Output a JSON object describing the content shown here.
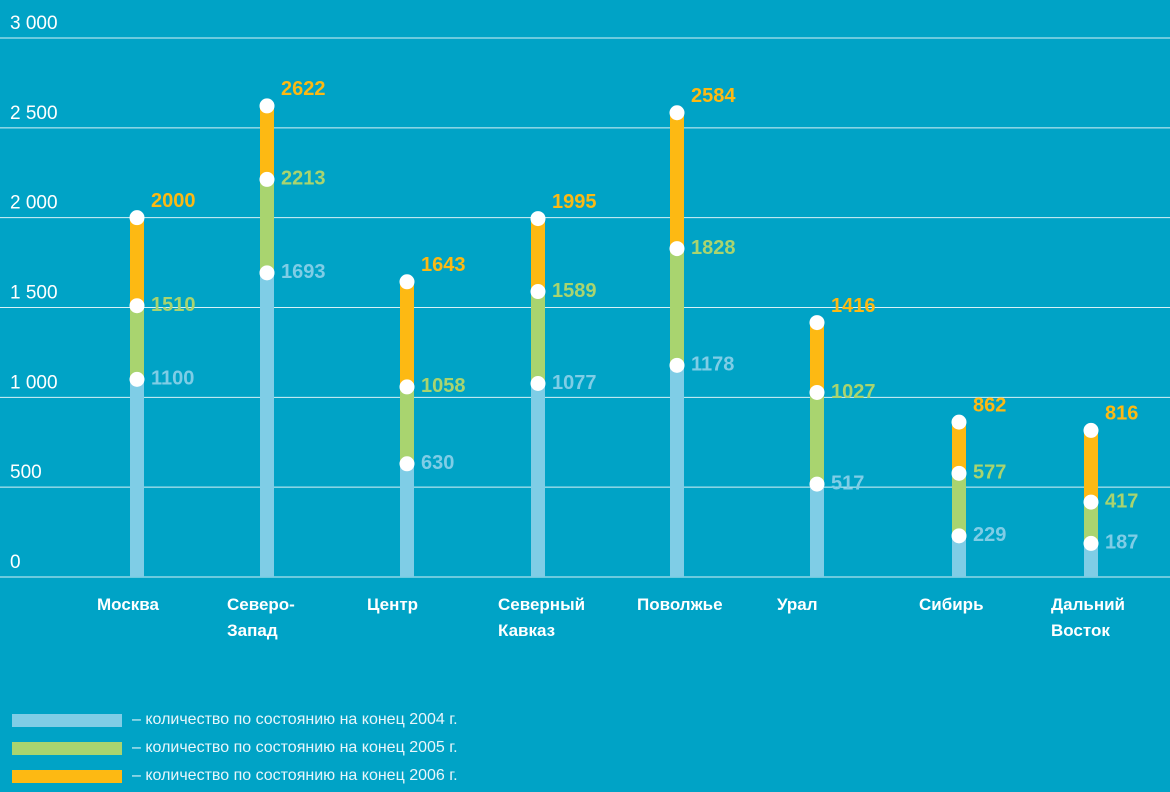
{
  "chart_data": {
    "type": "bar",
    "categories": [
      "Москва",
      "Северо-\nЗапад",
      "Центр",
      "Северный\nКавказ",
      "Поволжье",
      "Урал",
      "Сибирь",
      "Дальний\nВосток"
    ],
    "series": [
      {
        "name": "– количество по состоянию на конец 2004 г.",
        "color": "#7fcde6",
        "values": [
          1100,
          1693,
          630,
          1077,
          1178,
          517,
          229,
          187
        ]
      },
      {
        "name": "– количество по состоянию на конец 2005 г.",
        "color": "#a9d46f",
        "values": [
          1510,
          2213,
          1058,
          1589,
          1828,
          1027,
          577,
          417
        ]
      },
      {
        "name": "– количество по состоянию на конец 2006 г.",
        "color": "#fdb913",
        "values": [
          2000,
          2622,
          1643,
          1995,
          2584,
          1416,
          862,
          816
        ]
      }
    ],
    "ylim": [
      0,
      3000
    ],
    "yticks": [
      0,
      500,
      {
        "value": 1000,
        "label": "1 000"
      },
      {
        "value": 1500,
        "label": "1 500"
      },
      {
        "value": 2000,
        "label": "2 000"
      },
      {
        "value": 2500,
        "label": "2 500"
      },
      {
        "value": 3000,
        "label": "3 000"
      }
    ],
    "grid": true
  }
}
